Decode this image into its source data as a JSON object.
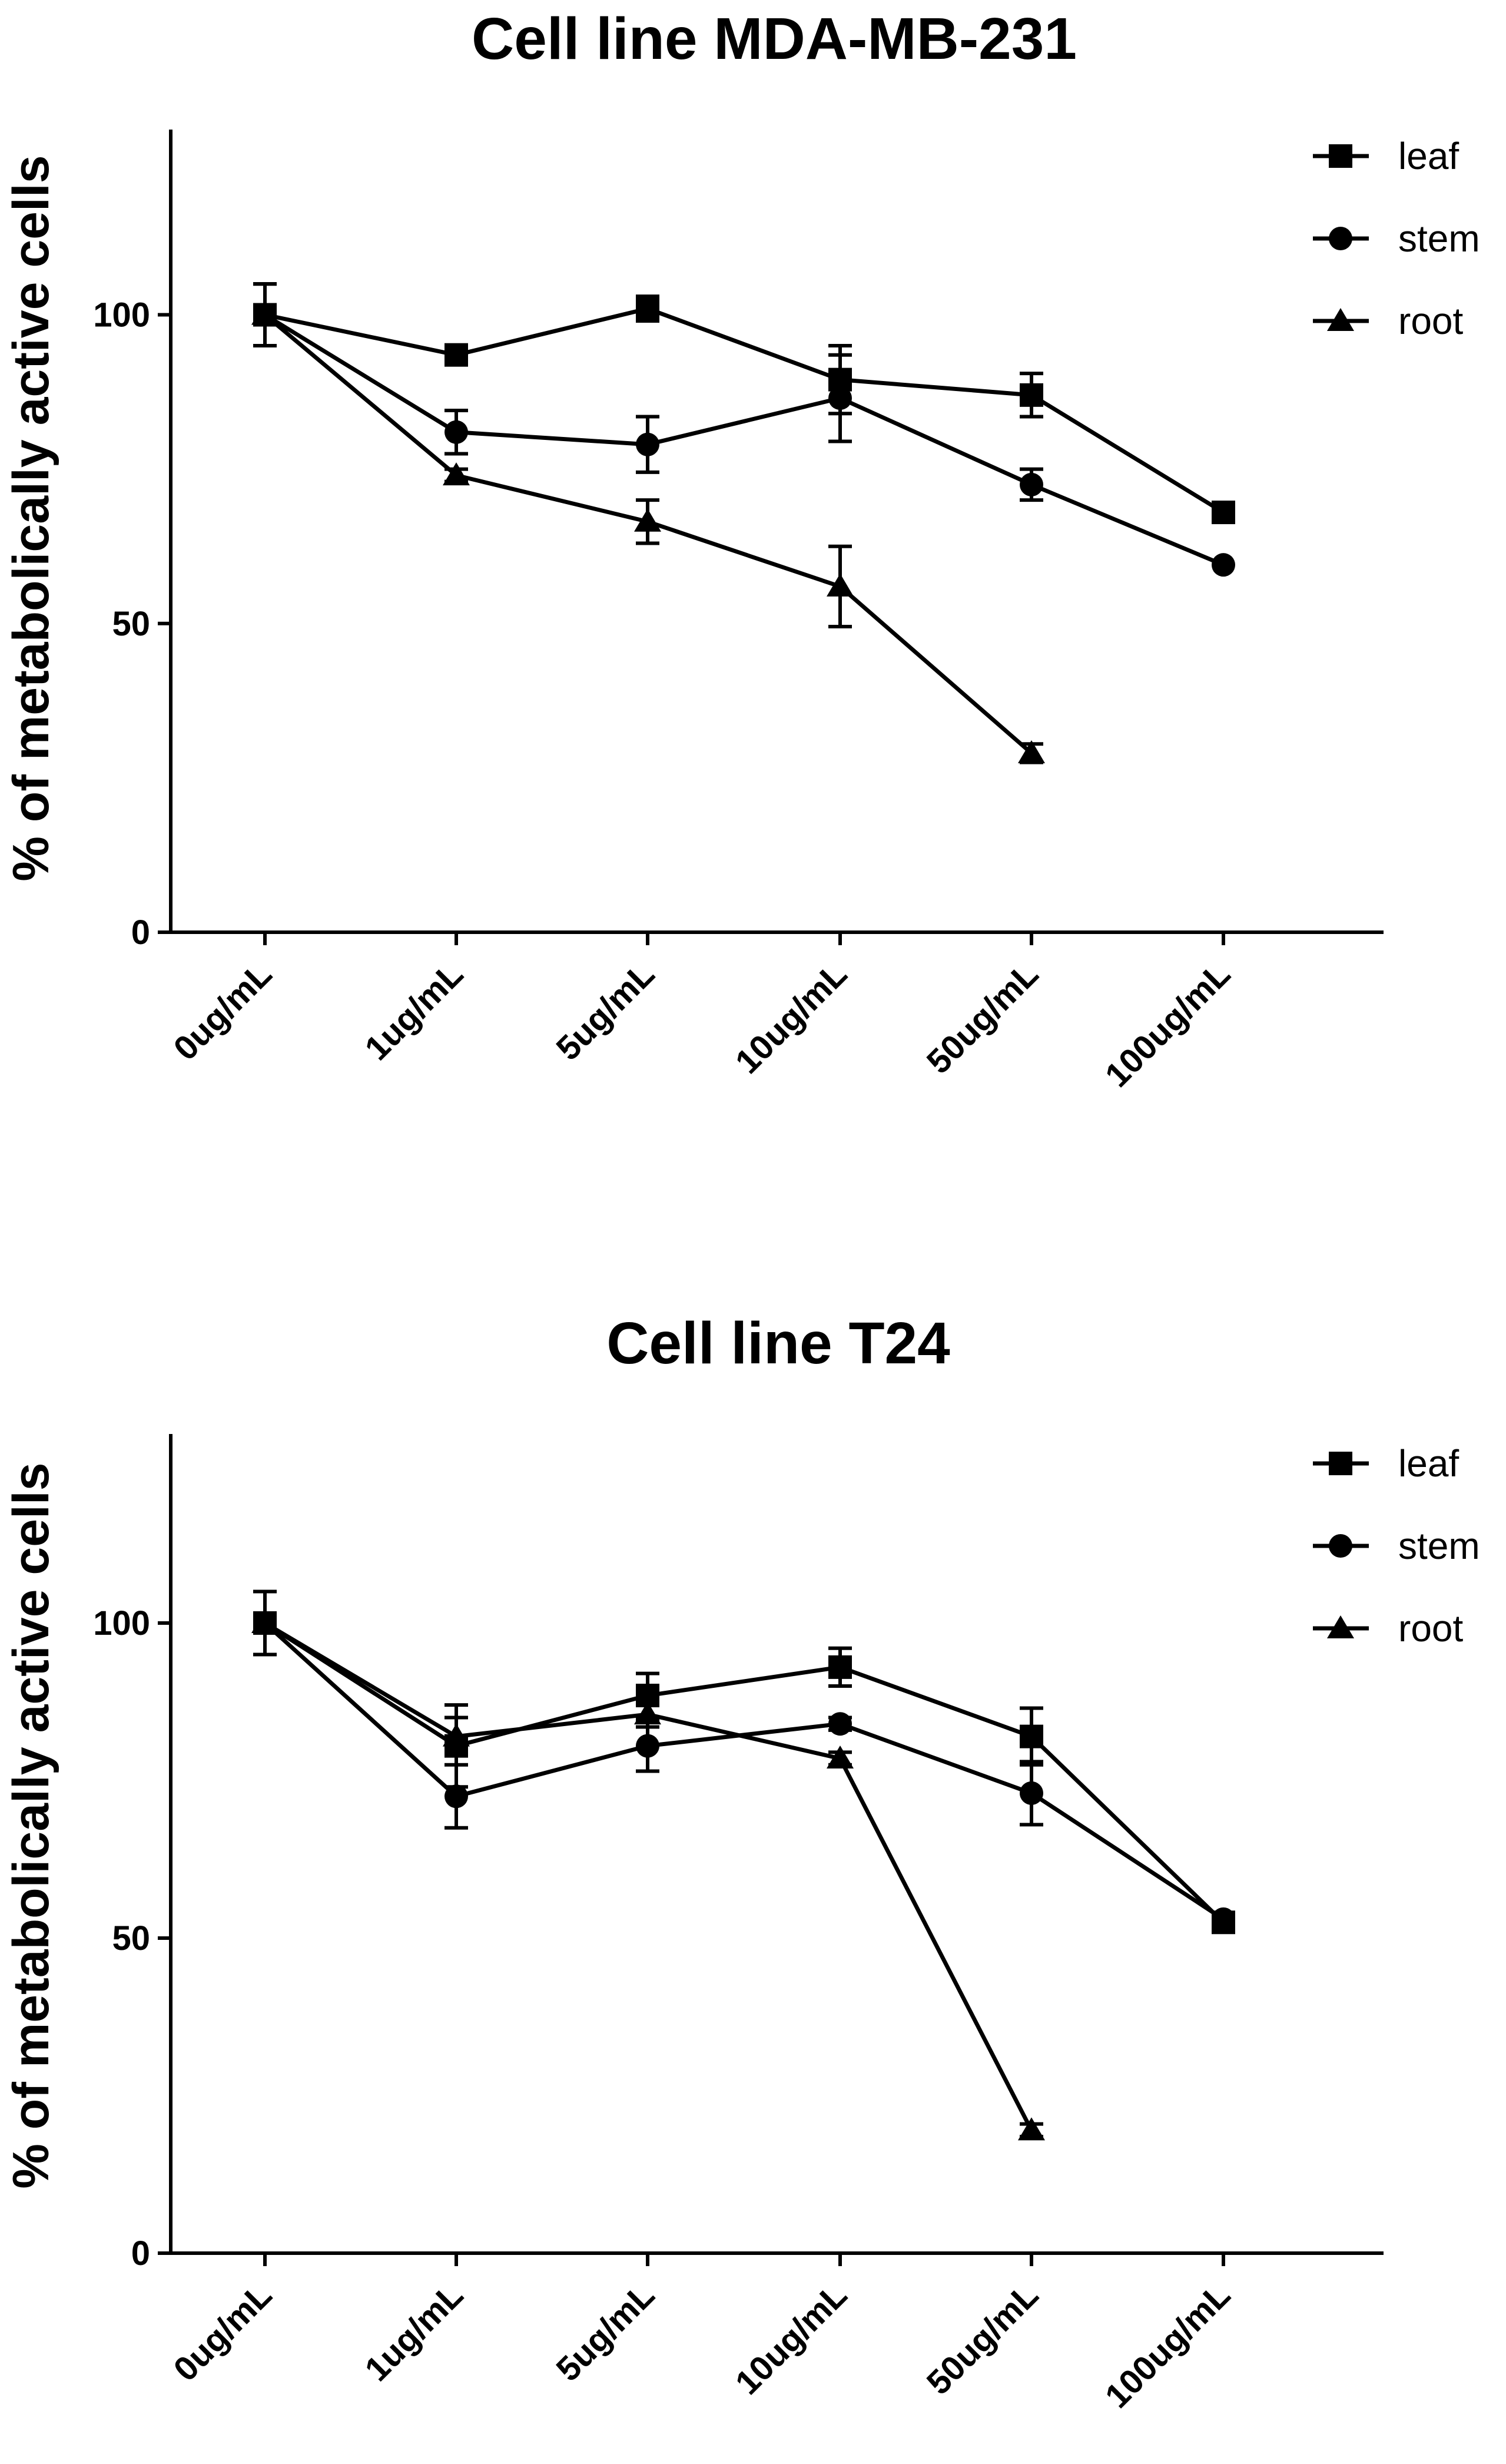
{
  "chart_data": [
    {
      "type": "line",
      "title": "Cell line MDA-MB-231",
      "xlabel": "",
      "ylabel": "% of metabolically active cells",
      "categories": [
        "0ug/mL",
        "1ug/mL",
        "5ug/mL",
        "10ug/mL",
        "50ug/mL",
        "100ug/mL"
      ],
      "ylim": [
        0,
        130
      ],
      "yticks": [
        0,
        50,
        100
      ],
      "legend": "top-right",
      "series": [
        {
          "name": "leaf",
          "marker": "square",
          "values": [
            100,
            93.5,
            101,
            89.5,
            87,
            68
          ],
          "errors": [
            5,
            1,
            2,
            5.5,
            3.5,
            0
          ]
        },
        {
          "name": "stem",
          "marker": "circle",
          "values": [
            100,
            81,
            79,
            86.5,
            72.5,
            59.5
          ],
          "errors": [
            5,
            3.5,
            4.5,
            7,
            2.5,
            0
          ]
        },
        {
          "name": "root",
          "marker": "triangle",
          "values": [
            100,
            74,
            66.5,
            56,
            29,
            null
          ],
          "errors": [
            5,
            1,
            3.5,
            6.5,
            1.5,
            null
          ]
        }
      ]
    },
    {
      "type": "line",
      "title": "Cell line T24",
      "xlabel": "",
      "ylabel": "% of metabolically active cells",
      "categories": [
        "0ug/mL",
        "1ug/mL",
        "5ug/mL",
        "10ug/mL",
        "50ug/mL",
        "100ug/mL"
      ],
      "ylim": [
        0,
        130
      ],
      "yticks": [
        0,
        50,
        100
      ],
      "legend": "top-right",
      "series": [
        {
          "name": "leaf",
          "marker": "square",
          "values": [
            100,
            80.5,
            88.5,
            93,
            82,
            52.5
          ],
          "errors": [
            5,
            6.5,
            3.5,
            3,
            4.5,
            1
          ]
        },
        {
          "name": "stem",
          "marker": "circle",
          "values": [
            100,
            72.5,
            80.5,
            84,
            73,
            53
          ],
          "errors": [
            5,
            5,
            4,
            1,
            5,
            0
          ]
        },
        {
          "name": "root",
          "marker": "triangle",
          "values": [
            100,
            82,
            85.5,
            78.5,
            19.5,
            null
          ],
          "errors": [
            5,
            3,
            2,
            1,
            1,
            null
          ]
        }
      ]
    }
  ]
}
